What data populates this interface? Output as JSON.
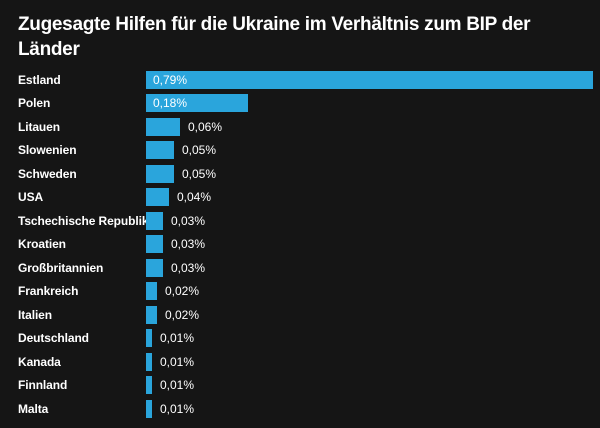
{
  "header": {
    "title_lines": [
      "Zugesagte Hilfen für die Ukraine im Verhältnis zum BIP der",
      "Länder"
    ]
  },
  "colors": {
    "background": "#151515",
    "bar": "#2aa5dc",
    "text": "#ffffff"
  },
  "chart_data": {
    "type": "bar",
    "orientation": "horizontal",
    "title": "Zugesagte Hilfen für die Ukraine im Verhältnis zum BIP der Länder",
    "xlabel": "",
    "ylabel": "",
    "xlim": [
      0,
      0.79
    ],
    "grid": false,
    "legend": false,
    "value_suffix": "%",
    "categories": [
      "Estland",
      "Polen",
      "Litauen",
      "Slowenien",
      "Schweden",
      "USA",
      "Tschechische Republik",
      "Kroatien",
      "Großbritannien",
      "Frankreich",
      "Italien",
      "Deutschland",
      "Kanada",
      "Finnland",
      "Malta"
    ],
    "values": [
      0.79,
      0.18,
      0.06,
      0.05,
      0.05,
      0.04,
      0.03,
      0.03,
      0.03,
      0.02,
      0.02,
      0.01,
      0.01,
      0.01,
      0.01
    ],
    "value_labels": [
      "0,79%",
      "0,18%",
      "0,06%",
      "0,05%",
      "0,05%",
      "0,04%",
      "0,03%",
      "0,03%",
      "0,03%",
      "0,02%",
      "0,02%",
      "0,01%",
      "0,01%",
      "0,01%",
      "0,01%"
    ]
  }
}
